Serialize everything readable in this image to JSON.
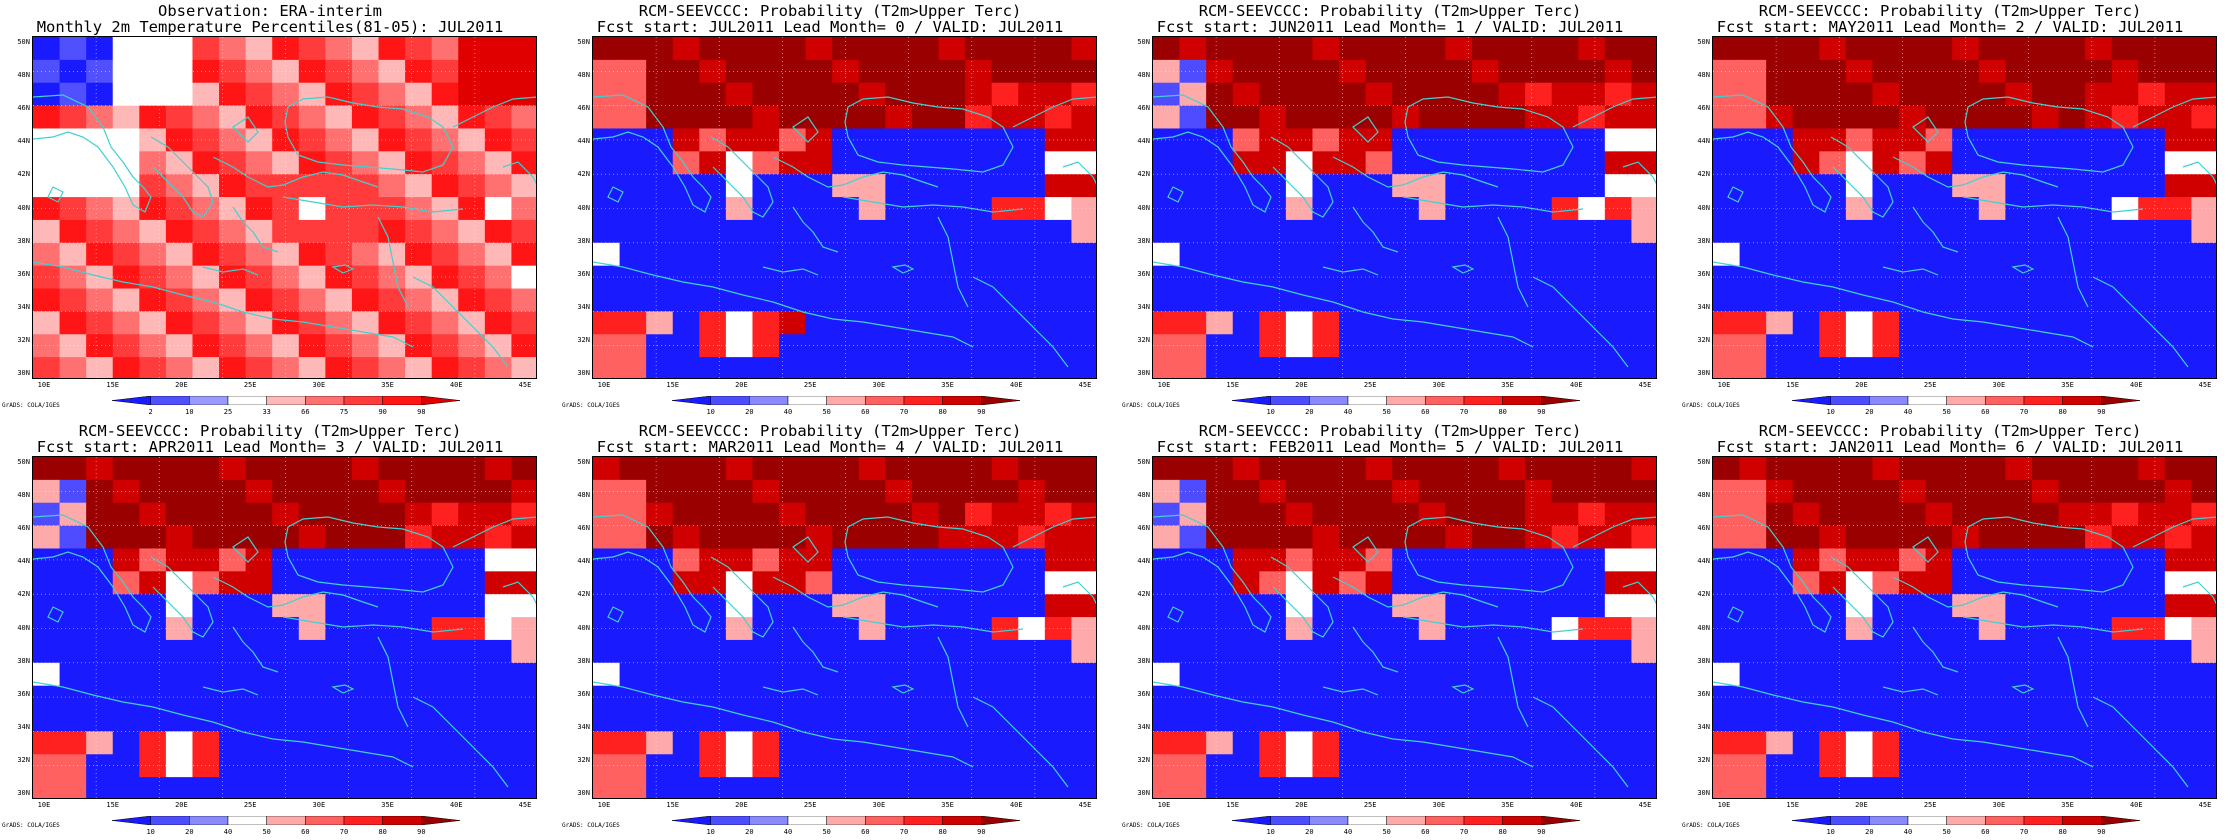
{
  "panels": [
    {
      "title1": "Observation: ERA-interim",
      "title2": "Monthly 2m Temperature Percentiles(81-05): JUL2011",
      "colorbar": {
        "labels": [
          "2",
          "10",
          "25",
          "33",
          "66",
          "75",
          "90",
          "98"
        ]
      }
    },
    {
      "title1": "RCM-SEEVCCC: Probability (T2m>Upper Terc)",
      "title2": "Fcst start: JUL2011  Lead Month= 0 / VALID: JUL2011",
      "colorbar": {
        "labels": [
          "10",
          "20",
          "40",
          "50",
          "60",
          "70",
          "80",
          "90"
        ]
      }
    },
    {
      "title1": "RCM-SEEVCCC: Probability (T2m>Upper Terc)",
      "title2": "Fcst start: JUN2011  Lead Month= 1 / VALID: JUL2011",
      "colorbar": {
        "labels": [
          "10",
          "20",
          "40",
          "50",
          "60",
          "70",
          "80",
          "90"
        ]
      }
    },
    {
      "title1": "RCM-SEEVCCC: Probability (T2m>Upper Terc)",
      "title2": "Fcst start: MAY2011  Lead Month= 2 / VALID: JUL2011",
      "colorbar": {
        "labels": [
          "10",
          "20",
          "40",
          "50",
          "60",
          "70",
          "80",
          "90"
        ]
      }
    },
    {
      "title1": "RCM-SEEVCCC: Probability (T2m>Upper Terc)",
      "title2": "Fcst start: APR2011  Lead Month= 3 / VALID: JUL2011",
      "colorbar": {
        "labels": [
          "10",
          "20",
          "40",
          "50",
          "60",
          "70",
          "80",
          "90"
        ]
      }
    },
    {
      "title1": "RCM-SEEVCCC: Probability (T2m>Upper Terc)",
      "title2": "Fcst start: MAR2011  Lead Month= 4 / VALID: JUL2011",
      "colorbar": {
        "labels": [
          "10",
          "20",
          "40",
          "50",
          "60",
          "70",
          "80",
          "90"
        ]
      }
    },
    {
      "title1": "RCM-SEEVCCC: Probability (T2m>Upper Terc)",
      "title2": "Fcst start: FEB2011  Lead Month= 5 / VALID: JUL2011",
      "colorbar": {
        "labels": [
          "10",
          "20",
          "40",
          "50",
          "60",
          "70",
          "80",
          "90"
        ]
      }
    },
    {
      "title1": "RCM-SEEVCCC: Probability (T2m>Upper Terc)",
      "title2": "Fcst start: JAN2011  Lead Month= 6 / VALID: JUL2011",
      "colorbar": {
        "labels": [
          "10",
          "20",
          "40",
          "50",
          "60",
          "70",
          "80",
          "90"
        ]
      }
    }
  ],
  "axes": {
    "lon_labels": [
      "10E",
      "15E",
      "20E",
      "25E",
      "30E",
      "35E",
      "40E",
      "45E"
    ],
    "lat_labels": [
      "50N",
      "48N",
      "46N",
      "44N",
      "42N",
      "40N",
      "38N",
      "36N",
      "34N",
      "32N",
      "30N"
    ]
  },
  "colorbar_palette": [
    "#1a1aff",
    "#4d4dff",
    "#8a8aff",
    "#ffffff",
    "#ffaaaa",
    "#ff6060",
    "#ff2020",
    "#d00000",
    "#9b0000"
  ],
  "obs_palette": [
    "#1a1aff",
    "#5050ff",
    "#9a9aff",
    "#ffffff",
    "#ffb8b8",
    "#ff7070",
    "#ff3b3b",
    "#ff1515",
    "#e00000"
  ],
  "credit": "GrADS: COLA/IGES",
  "coastline_color": "#40d0d0"
}
